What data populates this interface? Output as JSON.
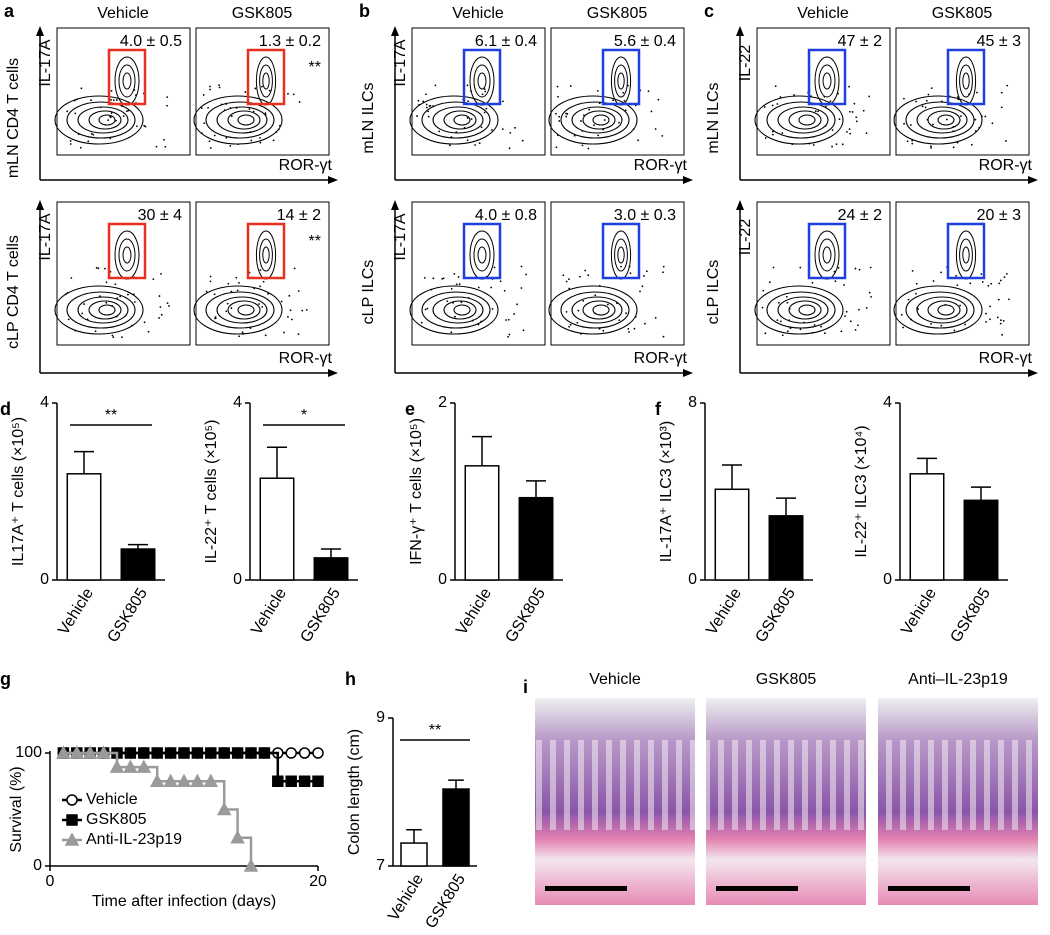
{
  "flow_panels": [
    {
      "letter": "a",
      "columns": [
        "Vehicle",
        "GSK805"
      ],
      "x_label": "ROR-γt",
      "gate_color": "#e8301c",
      "rows": [
        {
          "population": "mLN CD4 T cells",
          "marker": "IL-17A",
          "gates": [
            {
              "label": "4.0 ± 0.5"
            },
            {
              "label": "1.3 ± 0.2",
              "significance": "**"
            }
          ]
        },
        {
          "population": "cLP CD4 T cells",
          "marker": "IL-17A",
          "gates": [
            {
              "label": "30 ± 4"
            },
            {
              "label": "14 ± 2",
              "significance": "**"
            }
          ]
        }
      ]
    },
    {
      "letter": "b",
      "columns": [
        "Vehicle",
        "GSK805"
      ],
      "x_label": "ROR-γt",
      "gate_color": "#1f3fe0",
      "rows": [
        {
          "population": "mLN ILCs",
          "marker": "IL-17A",
          "gates": [
            {
              "label": "6.1 ± 0.4"
            },
            {
              "label": "5.6 ± 0.4"
            }
          ]
        },
        {
          "population": "cLP ILCs",
          "marker": "IL-17A",
          "gates": [
            {
              "label": "4.0 ± 0.8"
            },
            {
              "label": "3.0 ± 0.3"
            }
          ]
        }
      ]
    },
    {
      "letter": "c",
      "columns": [
        "Vehicle",
        "GSK805"
      ],
      "x_label": "ROR-γt",
      "gate_color": "#1f3fe0",
      "rows": [
        {
          "population": "mLN ILCs",
          "marker": "IL-22",
          "gates": [
            {
              "label": "47 ± 2"
            },
            {
              "label": "45 ± 3"
            }
          ]
        },
        {
          "population": "cLP ILCs",
          "marker": "IL-22",
          "gates": [
            {
              "label": "24 ± 2"
            },
            {
              "label": "20 ± 3"
            }
          ]
        }
      ]
    }
  ],
  "histology": {
    "letter": "i",
    "titles": [
      "Vehicle",
      "GSK805",
      "Anti–IL-23p19"
    ]
  },
  "chart_data": [
    {
      "type": "bar",
      "panel": "d",
      "y_label": "IL17A⁺ T cells (×10⁵)",
      "categories": [
        "Vehicle",
        "GSK805"
      ],
      "values": [
        2.4,
        0.7
      ],
      "errors": [
        0.5,
        0.1
      ],
      "colors": [
        "#ffffff",
        "#000000"
      ],
      "ylim": [
        0,
        4
      ],
      "yticks": [
        0,
        4
      ],
      "significance": "**"
    },
    {
      "type": "bar",
      "y_label": "IL-22⁺ T cells (×10⁵)",
      "categories": [
        "Vehicle",
        "GSK805"
      ],
      "values": [
        2.3,
        0.5
      ],
      "errors": [
        0.7,
        0.2
      ],
      "colors": [
        "#ffffff",
        "#000000"
      ],
      "ylim": [
        0,
        4
      ],
      "yticks": [
        0,
        4
      ],
      "significance": "*"
    },
    {
      "type": "bar",
      "panel": "e",
      "y_label": "IFN-γ⁺ T cells (×10⁵)",
      "categories": [
        "Vehicle",
        "GSK805"
      ],
      "values": [
        1.29,
        0.93
      ],
      "errors": [
        0.33,
        0.19
      ],
      "colors": [
        "#ffffff",
        "#000000"
      ],
      "ylim": [
        0,
        2
      ],
      "yticks": [
        0,
        2
      ]
    },
    {
      "type": "bar",
      "panel": "f",
      "y_label": "IL-17A⁺ ILC3 (×10³)",
      "categories": [
        "Vehicle",
        "GSK805"
      ],
      "values": [
        4.1,
        2.9
      ],
      "errors": [
        1.1,
        0.8
      ],
      "colors": [
        "#ffffff",
        "#000000"
      ],
      "ylim": [
        0,
        8
      ],
      "yticks": [
        0,
        8
      ]
    },
    {
      "type": "bar",
      "y_label": "IL-22⁺ ILC3 (×10⁴)",
      "categories": [
        "Vehicle",
        "GSK805"
      ],
      "values": [
        2.4,
        1.8
      ],
      "errors": [
        0.35,
        0.3
      ],
      "colors": [
        "#ffffff",
        "#000000"
      ],
      "ylim": [
        0,
        4
      ],
      "yticks": [
        0,
        4
      ]
    },
    {
      "type": "line",
      "panel": "g",
      "y_label": "Survival (%)",
      "x_label": "Time after infection (days)",
      "x": [
        1,
        2,
        3,
        4,
        5,
        6,
        7,
        8,
        9,
        10,
        11,
        12,
        13,
        14,
        15,
        16,
        17,
        18,
        19,
        20
      ],
      "xlim": [
        0,
        20
      ],
      "xticks": [
        0,
        20
      ],
      "ylim": [
        0,
        100
      ],
      "yticks": [
        0,
        100
      ],
      "legend": "lower left",
      "series": [
        {
          "name": "Vehicle",
          "color": "#000000",
          "marker": "circle",
          "fill": "#ffffff",
          "values": [
            100,
            100,
            100,
            100,
            100,
            100,
            100,
            100,
            100,
            100,
            100,
            100,
            100,
            100,
            100,
            100,
            100,
            100,
            100,
            100
          ]
        },
        {
          "name": "GSK805",
          "color": "#000000",
          "marker": "square",
          "fill": "#000000",
          "values": [
            100,
            100,
            100,
            100,
            100,
            100,
            100,
            100,
            100,
            100,
            100,
            100,
            100,
            100,
            100,
            100,
            75,
            75,
            75,
            75
          ]
        },
        {
          "name": "Anti-IL-23p19",
          "color": "#9a9a9a",
          "marker": "triangle",
          "fill": "#9a9a9a",
          "values": [
            100,
            100,
            100,
            100,
            87.5,
            87.5,
            87.5,
            75,
            75,
            75,
            75,
            75,
            50,
            25,
            0,
            null,
            null,
            null,
            null,
            null
          ]
        }
      ]
    },
    {
      "type": "bar",
      "panel": "h",
      "y_label": "Colon length (cm)",
      "categories": [
        "Vehicle",
        "GSK805"
      ],
      "values": [
        7.31,
        8.04
      ],
      "errors": [
        0.18,
        0.12
      ],
      "colors": [
        "#ffffff",
        "#000000"
      ],
      "ylim": [
        7,
        9
      ],
      "yticks": [
        7,
        9
      ],
      "significance": "**"
    }
  ]
}
